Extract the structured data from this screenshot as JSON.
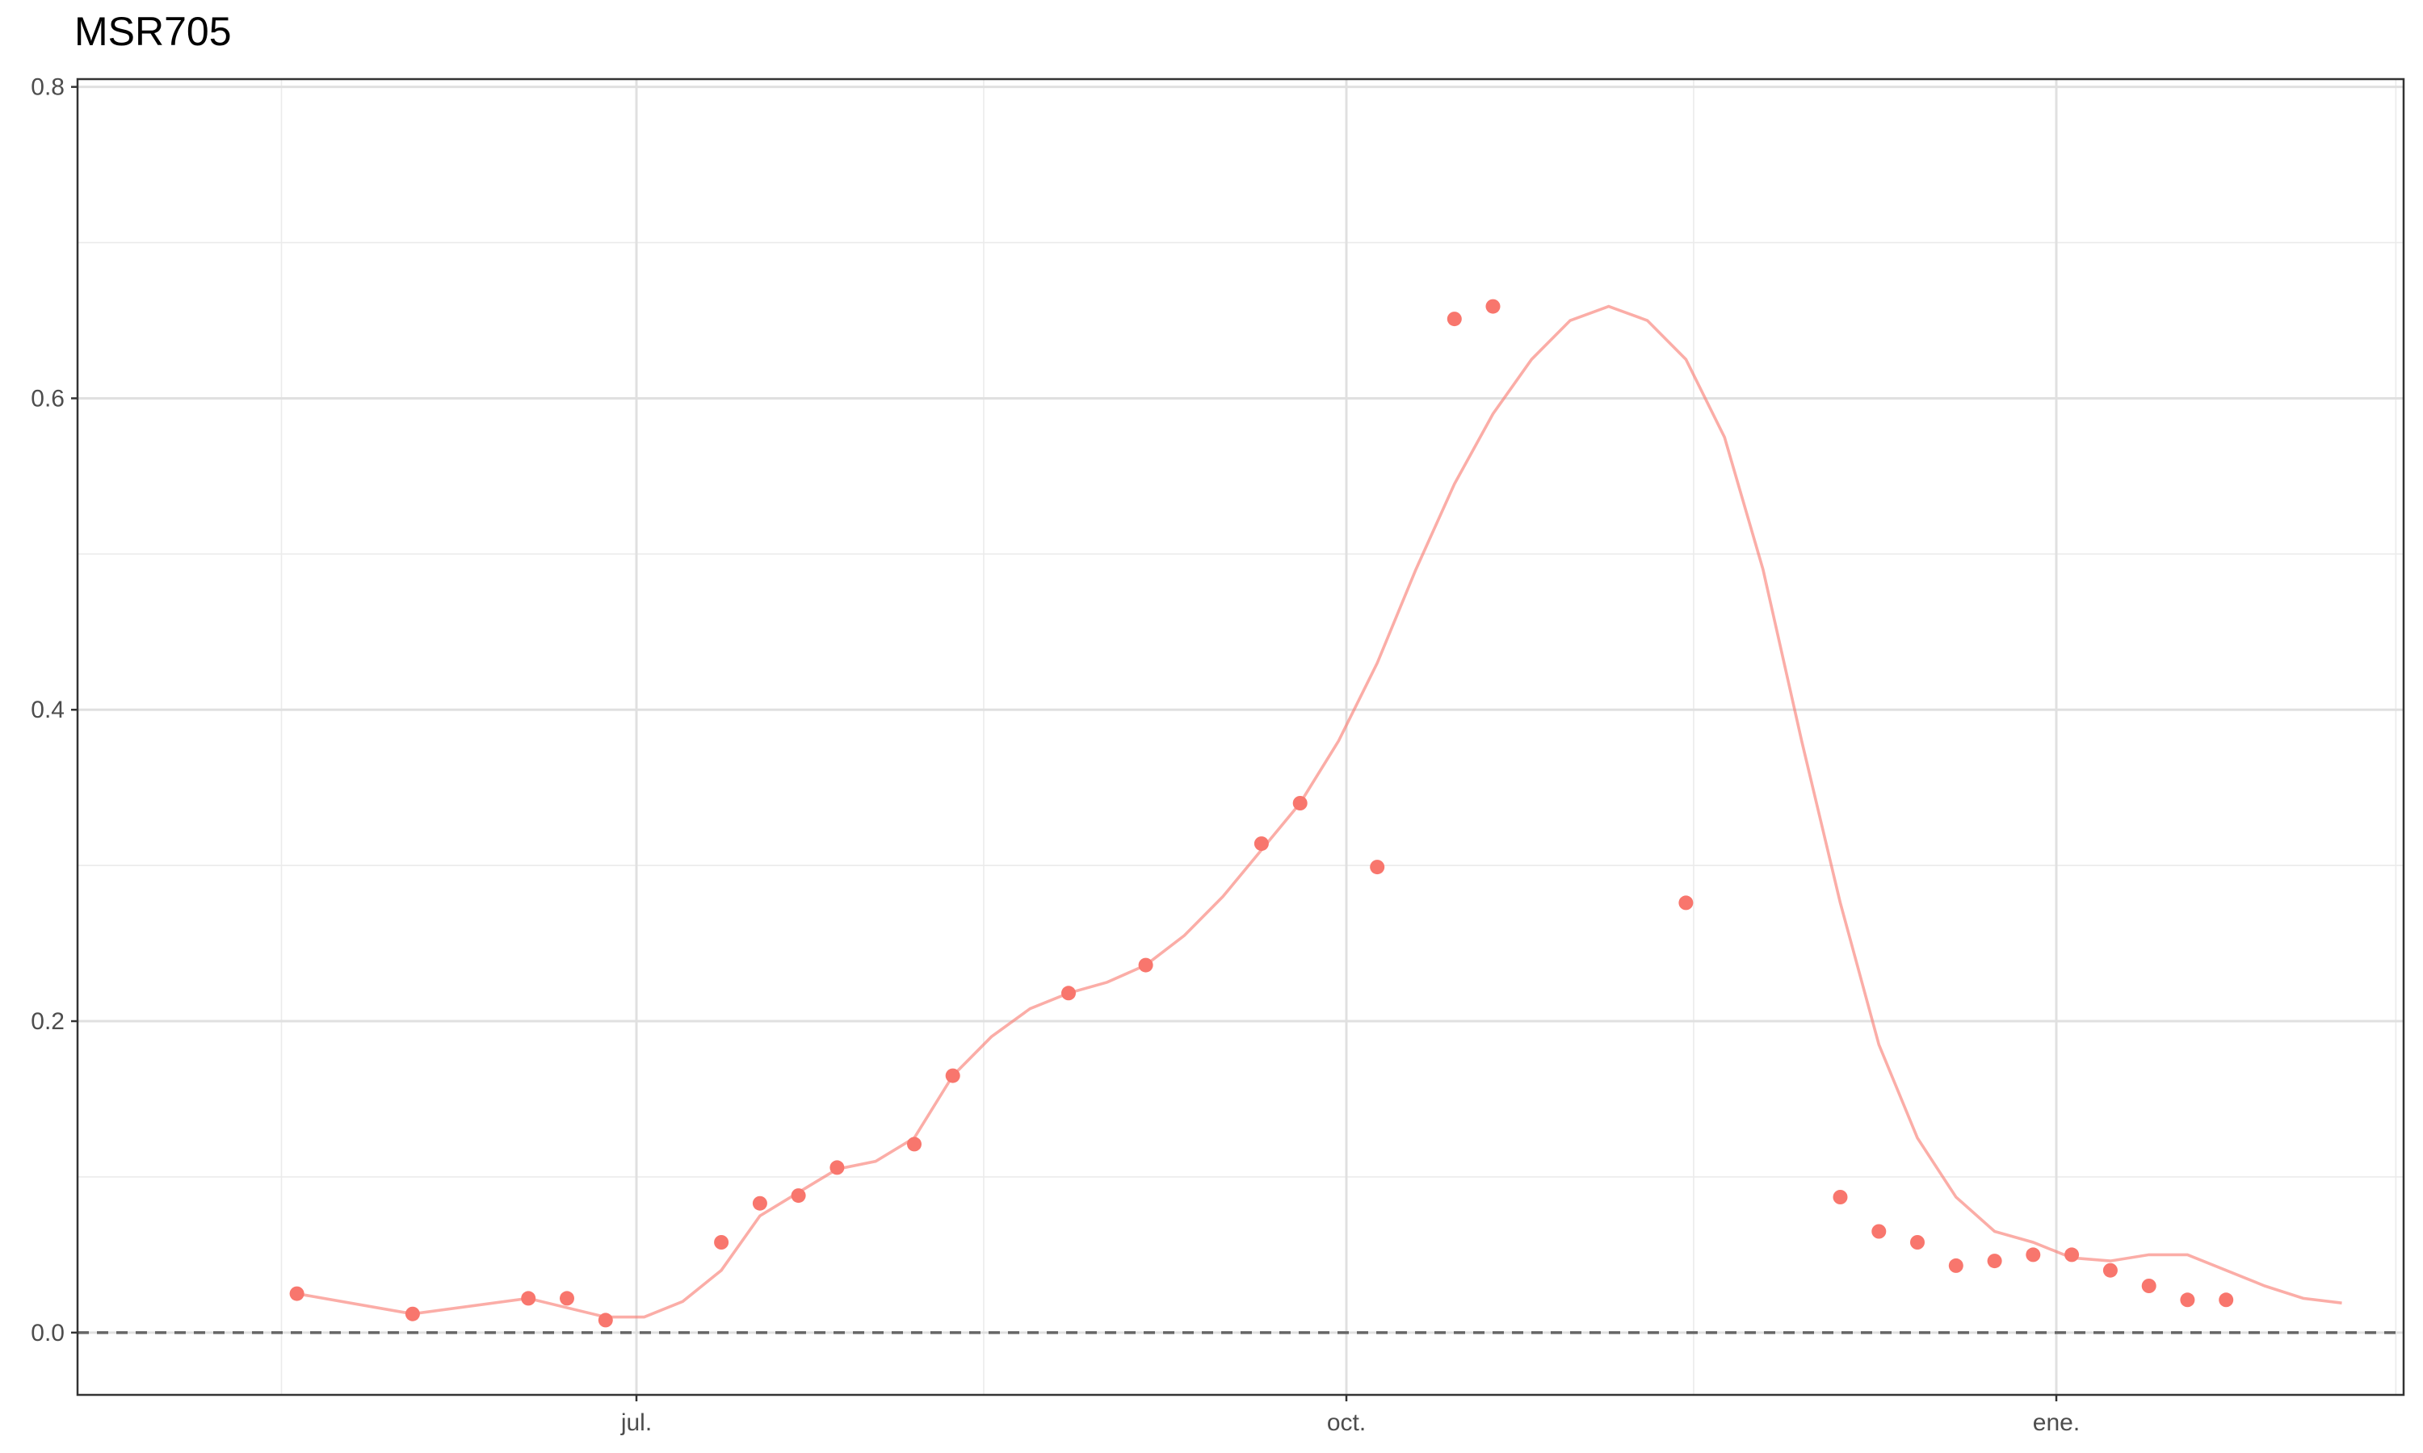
{
  "chart_data": {
    "type": "line",
    "title": "MSR705",
    "xlabel": "",
    "ylabel": "",
    "x_range": [
      "2021-05-15",
      "2022-02-07"
    ],
    "ylim": [
      -0.04,
      0.805
    ],
    "x_ticks": [
      {
        "date": "2021-07-01",
        "label": "jul."
      },
      {
        "date": "2021-10-01",
        "label": "oct."
      },
      {
        "date": "2022-01-01",
        "label": "ene."
      }
    ],
    "y_ticks": [
      {
        "value": 0.0,
        "label": "0.0"
      },
      {
        "value": 0.2,
        "label": "0.2"
      },
      {
        "value": 0.4,
        "label": "0.4"
      },
      {
        "value": 0.6,
        "label": "0.6"
      },
      {
        "value": 0.8,
        "label": "0.8"
      }
    ],
    "grid": true,
    "reference_line": {
      "y": 0,
      "style": "dashed"
    },
    "legend": "none",
    "series": [
      {
        "color": "#F8766D",
        "points": [
          [
            "2021-05-18",
            0.025
          ],
          [
            "2021-06-02",
            0.012
          ],
          [
            "2021-06-17",
            0.022
          ],
          [
            "2021-06-22",
            0.022
          ],
          [
            "2021-06-27",
            0.008
          ],
          [
            "2021-07-12",
            0.058
          ],
          [
            "2021-07-17",
            0.083
          ],
          [
            "2021-07-22",
            0.088
          ],
          [
            "2021-07-27",
            0.106
          ],
          [
            "2021-08-06",
            0.121
          ],
          [
            "2021-08-11",
            0.165
          ],
          [
            "2021-08-26",
            0.218
          ],
          [
            "2021-09-05",
            0.236
          ],
          [
            "2021-09-20",
            0.314
          ],
          [
            "2021-09-25",
            0.34
          ],
          [
            "2021-10-05",
            0.299
          ],
          [
            "2021-10-15",
            0.651
          ],
          [
            "2021-10-20",
            0.659
          ],
          [
            "2021-11-14",
            0.276
          ],
          [
            "2021-12-04",
            0.087
          ],
          [
            "2021-12-09",
            0.065
          ],
          [
            "2021-12-14",
            0.058
          ],
          [
            "2021-12-19",
            0.043
          ],
          [
            "2021-12-24",
            0.046
          ],
          [
            "2021-12-29",
            0.05
          ],
          [
            "2022-01-03",
            0.05
          ],
          [
            "2022-01-08",
            0.04
          ],
          [
            "2022-01-13",
            0.03
          ],
          [
            "2022-01-18",
            0.021
          ],
          [
            "2022-01-23",
            0.021
          ]
        ],
        "line": [
          [
            "2021-05-18",
            0.025
          ],
          [
            "2021-06-02",
            0.012
          ],
          [
            "2021-06-17",
            0.022
          ],
          [
            "2021-06-27",
            0.01
          ],
          [
            "2021-07-02",
            0.01
          ],
          [
            "2021-07-07",
            0.02
          ],
          [
            "2021-07-12",
            0.04
          ],
          [
            "2021-07-17",
            0.075
          ],
          [
            "2021-07-22",
            0.09
          ],
          [
            "2021-07-27",
            0.105
          ],
          [
            "2021-08-01",
            0.11
          ],
          [
            "2021-08-06",
            0.125
          ],
          [
            "2021-08-11",
            0.165
          ],
          [
            "2021-08-16",
            0.19
          ],
          [
            "2021-08-21",
            0.208
          ],
          [
            "2021-08-26",
            0.218
          ],
          [
            "2021-08-31",
            0.225
          ],
          [
            "2021-09-05",
            0.236
          ],
          [
            "2021-09-10",
            0.255
          ],
          [
            "2021-09-15",
            0.28
          ],
          [
            "2021-09-20",
            0.31
          ],
          [
            "2021-09-25",
            0.34
          ],
          [
            "2021-09-30",
            0.38
          ],
          [
            "2021-10-05",
            0.43
          ],
          [
            "2021-10-10",
            0.49
          ],
          [
            "2021-10-15",
            0.545
          ],
          [
            "2021-10-20",
            0.59
          ],
          [
            "2021-10-25",
            0.625
          ],
          [
            "2021-10-30",
            0.65
          ],
          [
            "2021-11-04",
            0.659
          ],
          [
            "2021-11-09",
            0.65
          ],
          [
            "2021-11-14",
            0.625
          ],
          [
            "2021-11-19",
            0.575
          ],
          [
            "2021-11-24",
            0.49
          ],
          [
            "2021-11-29",
            0.38
          ],
          [
            "2021-12-04",
            0.276
          ],
          [
            "2021-12-09",
            0.185
          ],
          [
            "2021-12-14",
            0.125
          ],
          [
            "2021-12-19",
            0.087
          ],
          [
            "2021-12-24",
            0.065
          ],
          [
            "2021-12-29",
            0.058
          ],
          [
            "2022-01-03",
            0.048
          ],
          [
            "2022-01-08",
            0.046
          ],
          [
            "2022-01-13",
            0.05
          ],
          [
            "2022-01-18",
            0.05
          ],
          [
            "2022-01-23",
            0.04
          ],
          [
            "2022-01-28",
            0.03
          ],
          [
            "2022-02-02",
            0.022
          ],
          [
            "2022-02-07",
            0.019
          ]
        ]
      }
    ]
  }
}
